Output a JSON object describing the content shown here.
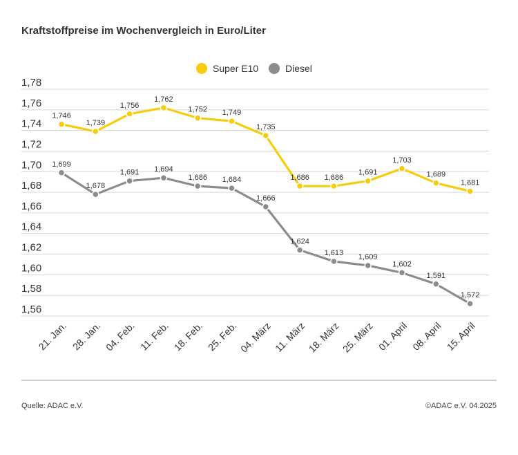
{
  "title": "Kraftstoffpreise im Wochenvergleich in Euro/Liter",
  "source": "Quelle: ADAC e.V.",
  "copyright": "©ADAC e.V. 04.2025",
  "colors": {
    "super_e10": "#f6cc0f",
    "diesel": "#8c8c8c",
    "grid": "#d6d6d6"
  },
  "chart_data": {
    "type": "line",
    "title": "Kraftstoffpreise im Wochenvergleich in Euro/Liter",
    "xlabel": "",
    "ylabel": "",
    "categories": [
      "21. Jan.",
      "28. Jan.",
      "04. Feb.",
      "11. Feb.",
      "18. Feb.",
      "25. Feb.",
      "04. März",
      "11. März",
      "18. März",
      "25. März",
      "01. April",
      "08. April",
      "15. April"
    ],
    "ylim": [
      1.56,
      1.78
    ],
    "yticks": [
      "1,78",
      "1,76",
      "1,74",
      "1,72",
      "1,70",
      "1,68",
      "1,66",
      "1,64",
      "1,62",
      "1,60",
      "1,58",
      "1,56"
    ],
    "grid": true,
    "legend_position": "top-center",
    "series": [
      {
        "name": "Super E10",
        "values": [
          1.746,
          1.739,
          1.756,
          1.762,
          1.752,
          1.749,
          1.735,
          1.686,
          1.686,
          1.691,
          1.703,
          1.689,
          1.681
        ],
        "labels": [
          "1,746",
          "1,739",
          "1,756",
          "1,762",
          "1,752",
          "1,749",
          "1,735",
          "1,686",
          "1,686",
          "1,691",
          "1,703",
          "1,689",
          "1,681"
        ]
      },
      {
        "name": "Diesel",
        "values": [
          1.699,
          1.678,
          1.691,
          1.694,
          1.686,
          1.684,
          1.666,
          1.624,
          1.613,
          1.609,
          1.602,
          1.591,
          1.572
        ],
        "labels": [
          "1,699",
          "1,678",
          "1,691",
          "1,694",
          "1,686",
          "1,684",
          "1,666",
          "1,624",
          "1,613",
          "1,609",
          "1,602",
          "1,591",
          "1,572"
        ]
      }
    ]
  }
}
